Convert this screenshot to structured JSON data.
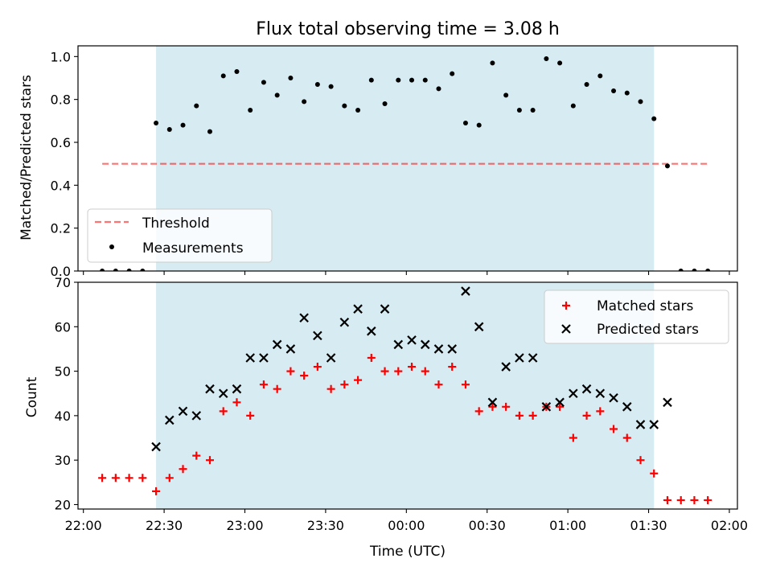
{
  "title": "Flux total observing time = 3.08 h",
  "colors": {
    "shade": "#add8e6",
    "threshold": "#ff0000",
    "measurement": "#000000",
    "matched": "#ff0000",
    "predicted": "#000000"
  },
  "chart_data": [
    {
      "type": "scatter",
      "panel": "top",
      "ylabel": "Matched/Predicted stars",
      "xlabel": "",
      "ylim": [
        0,
        1.05
      ],
      "yticks": [
        "0.0",
        "0.2",
        "0.4",
        "0.6",
        "0.8",
        "1.0"
      ],
      "legend_position": "lower-left",
      "shaded_interval": [
        "22:27",
        "01:32"
      ],
      "threshold": {
        "name": "Threshold",
        "value": 0.5,
        "x_range": [
          "22:07",
          "01:52"
        ]
      },
      "series": [
        {
          "name": "Measurements",
          "x": [
            "22:07",
            "22:12",
            "22:17",
            "22:22",
            "22:27",
            "22:32",
            "22:37",
            "22:42",
            "22:47",
            "22:52",
            "22:57",
            "23:02",
            "23:07",
            "23:12",
            "23:17",
            "23:22",
            "23:27",
            "23:32",
            "23:37",
            "23:42",
            "23:47",
            "23:52",
            "23:57",
            "00:02",
            "00:07",
            "00:12",
            "00:17",
            "00:22",
            "00:27",
            "00:32",
            "00:37",
            "00:42",
            "00:47",
            "00:52",
            "00:57",
            "01:02",
            "01:07",
            "01:12",
            "01:17",
            "01:22",
            "01:27",
            "01:32",
            "01:37",
            "01:42",
            "01:47",
            "01:52"
          ],
          "values": [
            0,
            0,
            0,
            0,
            0.69,
            0.66,
            0.68,
            0.77,
            0.65,
            0.91,
            0.93,
            0.75,
            0.88,
            0.82,
            0.9,
            0.79,
            0.87,
            0.86,
            0.77,
            0.75,
            0.89,
            0.78,
            0.89,
            0.89,
            0.89,
            0.85,
            0.92,
            0.69,
            0.68,
            0.97,
            0.82,
            0.75,
            0.75,
            0.99,
            0.97,
            0.77,
            0.87,
            0.91,
            0.84,
            0.83,
            0.79,
            0.71,
            0.49,
            0,
            0,
            0
          ]
        }
      ]
    },
    {
      "type": "scatter",
      "panel": "bottom",
      "ylabel": "Count",
      "xlabel": "Time (UTC)",
      "ylim": [
        19,
        70
      ],
      "yticks": [
        "20",
        "30",
        "40",
        "50",
        "60",
        "70"
      ],
      "xticks": [
        "22:00",
        "22:30",
        "23:00",
        "23:30",
        "00:00",
        "00:30",
        "01:00",
        "01:30",
        "02:00"
      ],
      "legend_position": "upper-right",
      "shaded_interval": [
        "22:27",
        "01:32"
      ],
      "series": [
        {
          "name": "Matched stars",
          "x": [
            "22:07",
            "22:12",
            "22:17",
            "22:22",
            "22:27",
            "22:32",
            "22:37",
            "22:42",
            "22:47",
            "22:52",
            "22:57",
            "23:02",
            "23:07",
            "23:12",
            "23:17",
            "23:22",
            "23:27",
            "23:32",
            "23:37",
            "23:42",
            "23:47",
            "23:52",
            "23:57",
            "00:02",
            "00:07",
            "00:12",
            "00:17",
            "00:22",
            "00:27",
            "00:32",
            "00:37",
            "00:42",
            "00:47",
            "00:52",
            "00:57",
            "01:02",
            "01:07",
            "01:12",
            "01:17",
            "01:22",
            "01:27",
            "01:32",
            "01:37",
            "01:42",
            "01:47",
            "01:52"
          ],
          "values": [
            26,
            26,
            26,
            26,
            23,
            26,
            28,
            31,
            30,
            41,
            43,
            40,
            47,
            46,
            50,
            49,
            51,
            46,
            47,
            48,
            53,
            50,
            50,
            51,
            50,
            47,
            51,
            47,
            41,
            42,
            42,
            40,
            40,
            42,
            42,
            35,
            40,
            41,
            37,
            35,
            30,
            27,
            21,
            21,
            21,
            21
          ]
        },
        {
          "name": "Predicted stars",
          "x": [
            "22:27",
            "22:32",
            "22:37",
            "22:42",
            "22:47",
            "22:52",
            "22:57",
            "23:02",
            "23:07",
            "23:12",
            "23:17",
            "23:22",
            "23:27",
            "23:32",
            "23:37",
            "23:42",
            "23:47",
            "23:52",
            "23:57",
            "00:02",
            "00:07",
            "00:12",
            "00:17",
            "00:22",
            "00:27",
            "00:32",
            "00:37",
            "00:42",
            "00:47",
            "00:52",
            "00:57",
            "01:02",
            "01:07",
            "01:12",
            "01:17",
            "01:22",
            "01:27",
            "01:32",
            "01:37"
          ],
          "values": [
            33,
            39,
            41,
            40,
            46,
            45,
            46,
            53,
            53,
            56,
            55,
            62,
            58,
            53,
            61,
            64,
            59,
            64,
            56,
            57,
            56,
            55,
            55,
            68,
            60,
            43,
            51,
            53,
            53,
            42,
            43,
            45,
            46,
            45,
            44,
            42,
            38,
            38,
            43
          ]
        }
      ]
    }
  ]
}
